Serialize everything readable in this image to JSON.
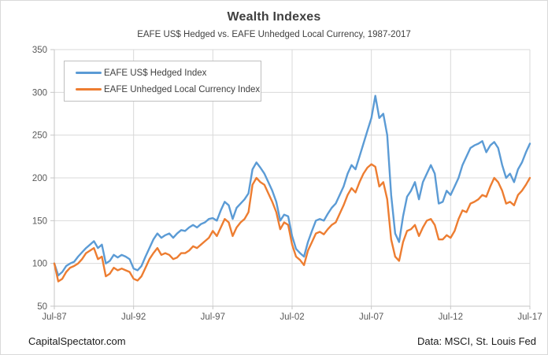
{
  "chart": {
    "title": "Wealth Indexes",
    "subtitle": "EAFE US$ Hedged vs. EAFE Unhedged Local Currency, 1987-2017"
  },
  "footer": {
    "left": "CapitalSpectator.com",
    "right": "Data: MSCI, St. Louis Fed"
  },
  "chart_data": {
    "type": "line",
    "title": "Wealth Indexes",
    "subtitle": "EAFE US$ Hedged vs. EAFE Unhedged Local Currency, 1987-2017",
    "x_unit": "time, quarterly samples from Jul-1987 to Jul-2017",
    "x_step_years": 0.25,
    "xlim_years": [
      0,
      30
    ],
    "x_tick_labels": [
      "Jul-87",
      "Jul-92",
      "Jul-97",
      "Jul-02",
      "Jul-07",
      "Jul-12",
      "Jul-17"
    ],
    "y_ticks": [
      50,
      100,
      150,
      200,
      250,
      300,
      350
    ],
    "ylim": [
      50,
      350
    ],
    "grid": true,
    "legend_position": "top-left",
    "colors": {
      "grid": "#d9d9d9",
      "axis": "#c6c6c6",
      "tick_label": "#595959"
    },
    "series": [
      {
        "name": "EAFE US$ Hedged Index",
        "color": "#5B9BD5",
        "values": [
          100,
          86,
          90,
          97,
          100,
          102,
          108,
          113,
          118,
          122,
          126,
          118,
          122,
          100,
          103,
          110,
          107,
          110,
          108,
          105,
          94,
          92,
          97,
          108,
          118,
          128,
          135,
          130,
          133,
          135,
          130,
          135,
          139,
          138,
          142,
          145,
          142,
          146,
          148,
          152,
          153,
          150,
          162,
          172,
          168,
          152,
          165,
          170,
          175,
          182,
          210,
          218,
          212,
          205,
          195,
          185,
          172,
          150,
          157,
          155,
          132,
          117,
          112,
          108,
          125,
          138,
          150,
          152,
          150,
          158,
          165,
          170,
          180,
          190,
          205,
          215,
          210,
          225,
          240,
          255,
          270,
          296,
          270,
          275,
          250,
          180,
          135,
          125,
          155,
          178,
          185,
          195,
          175,
          195,
          205,
          215,
          205,
          170,
          172,
          185,
          180,
          190,
          200,
          215,
          225,
          235,
          238,
          240,
          243,
          230,
          238,
          242,
          235,
          215,
          200,
          205,
          195,
          210,
          218,
          230,
          240
        ]
      },
      {
        "name": "EAFE Unhedged Local Currency Index",
        "color": "#ED7D31",
        "values": [
          100,
          79,
          82,
          90,
          95,
          97,
          100,
          105,
          112,
          115,
          118,
          105,
          108,
          85,
          88,
          95,
          92,
          94,
          92,
          90,
          82,
          80,
          85,
          95,
          105,
          112,
          118,
          110,
          112,
          110,
          105,
          107,
          112,
          112,
          115,
          120,
          118,
          122,
          126,
          130,
          138,
          132,
          142,
          152,
          148,
          132,
          142,
          148,
          152,
          160,
          192,
          200,
          195,
          192,
          182,
          172,
          160,
          140,
          148,
          145,
          122,
          108,
          104,
          98,
          115,
          125,
          135,
          137,
          134,
          140,
          145,
          148,
          158,
          168,
          180,
          188,
          183,
          195,
          205,
          212,
          216,
          213,
          190,
          195,
          175,
          128,
          108,
          103,
          125,
          138,
          140,
          145,
          132,
          142,
          150,
          152,
          145,
          128,
          128,
          133,
          130,
          138,
          152,
          162,
          160,
          170,
          172,
          175,
          180,
          178,
          190,
          200,
          195,
          185,
          170,
          172,
          168,
          180,
          185,
          192,
          200
        ]
      }
    ]
  }
}
